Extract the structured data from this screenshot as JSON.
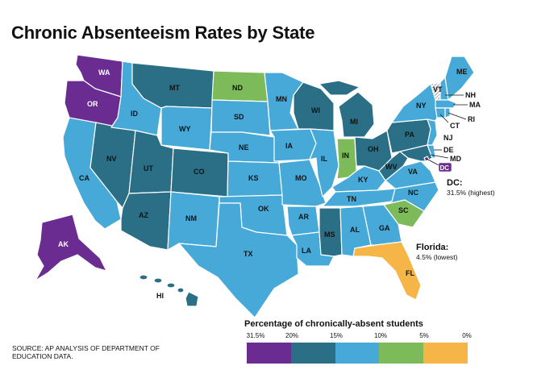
{
  "title": "Chronic Absenteeism Rates by State",
  "source": "SOURCE: AP ANALYSIS OF DEPARTMENT OF EDUCATION DATA.",
  "colors": {
    "purple": "#6a2c91",
    "dark_teal": "#2a6f86",
    "light_blue": "#47a9d8",
    "green": "#7dba5a",
    "yellow": "#f5b547"
  },
  "legend": {
    "title": "Percentage of chronically-absent students",
    "ticks": [
      "31.5%",
      "20%",
      "15%",
      "10%",
      "5%",
      "0%"
    ],
    "bins": [
      {
        "range": "31.5%–20%",
        "color": "purple"
      },
      {
        "range": "20%–15%",
        "color": "dark_teal"
      },
      {
        "range": "15%–10%",
        "color": "light_blue"
      },
      {
        "range": "10%–5%",
        "color": "green"
      },
      {
        "range": "5%–0%",
        "color": "yellow"
      }
    ]
  },
  "states": [
    {
      "abbr": "WA",
      "color": "purple"
    },
    {
      "abbr": "OR",
      "color": "purple"
    },
    {
      "abbr": "AK",
      "color": "purple"
    },
    {
      "abbr": "DC",
      "color": "purple"
    },
    {
      "abbr": "MT",
      "color": "dark_teal"
    },
    {
      "abbr": "NV",
      "color": "dark_teal"
    },
    {
      "abbr": "UT",
      "color": "dark_teal"
    },
    {
      "abbr": "CO",
      "color": "dark_teal"
    },
    {
      "abbr": "AZ",
      "color": "dark_teal"
    },
    {
      "abbr": "WI",
      "color": "dark_teal"
    },
    {
      "abbr": "MI",
      "color": "dark_teal"
    },
    {
      "abbr": "OH",
      "color": "dark_teal"
    },
    {
      "abbr": "PA",
      "color": "dark_teal"
    },
    {
      "abbr": "MS",
      "color": "dark_teal"
    },
    {
      "abbr": "HI",
      "color": "dark_teal"
    },
    {
      "abbr": "MD",
      "color": "dark_teal"
    },
    {
      "abbr": "WV",
      "color": "dark_teal"
    },
    {
      "abbr": "ND",
      "color": "green"
    },
    {
      "abbr": "IN",
      "color": "green"
    },
    {
      "abbr": "SC",
      "color": "green"
    },
    {
      "abbr": "FL",
      "color": "yellow"
    },
    {
      "abbr": "VT",
      "color": "hatched"
    },
    {
      "abbr": "ID",
      "color": "light_blue"
    },
    {
      "abbr": "WY",
      "color": "light_blue"
    },
    {
      "abbr": "CA",
      "color": "light_blue"
    },
    {
      "abbr": "NM",
      "color": "light_blue"
    },
    {
      "abbr": "TX",
      "color": "light_blue"
    },
    {
      "abbr": "OK",
      "color": "light_blue"
    },
    {
      "abbr": "KS",
      "color": "light_blue"
    },
    {
      "abbr": "NE",
      "color": "light_blue"
    },
    {
      "abbr": "SD",
      "color": "light_blue"
    },
    {
      "abbr": "MN",
      "color": "light_blue"
    },
    {
      "abbr": "IA",
      "color": "light_blue"
    },
    {
      "abbr": "MO",
      "color": "light_blue"
    },
    {
      "abbr": "AR",
      "color": "light_blue"
    },
    {
      "abbr": "LA",
      "color": "light_blue"
    },
    {
      "abbr": "IL",
      "color": "light_blue"
    },
    {
      "abbr": "KY",
      "color": "light_blue"
    },
    {
      "abbr": "TN",
      "color": "light_blue"
    },
    {
      "abbr": "AL",
      "color": "light_blue"
    },
    {
      "abbr": "GA",
      "color": "light_blue"
    },
    {
      "abbr": "NC",
      "color": "light_blue"
    },
    {
      "abbr": "VA",
      "color": "light_blue"
    },
    {
      "abbr": "NY",
      "color": "light_blue"
    },
    {
      "abbr": "ME",
      "color": "light_blue"
    },
    {
      "abbr": "NH",
      "color": "light_blue"
    },
    {
      "abbr": "MA",
      "color": "light_blue"
    },
    {
      "abbr": "RI",
      "color": "light_blue"
    },
    {
      "abbr": "CT",
      "color": "light_blue"
    },
    {
      "abbr": "NJ",
      "color": "light_blue"
    },
    {
      "abbr": "DE",
      "color": "light_blue"
    }
  ],
  "callouts": {
    "dc": {
      "title": "DC:",
      "body": "31.5% (highest)"
    },
    "florida": {
      "title": "Florida:",
      "body": "4.5% (lowest)"
    }
  }
}
